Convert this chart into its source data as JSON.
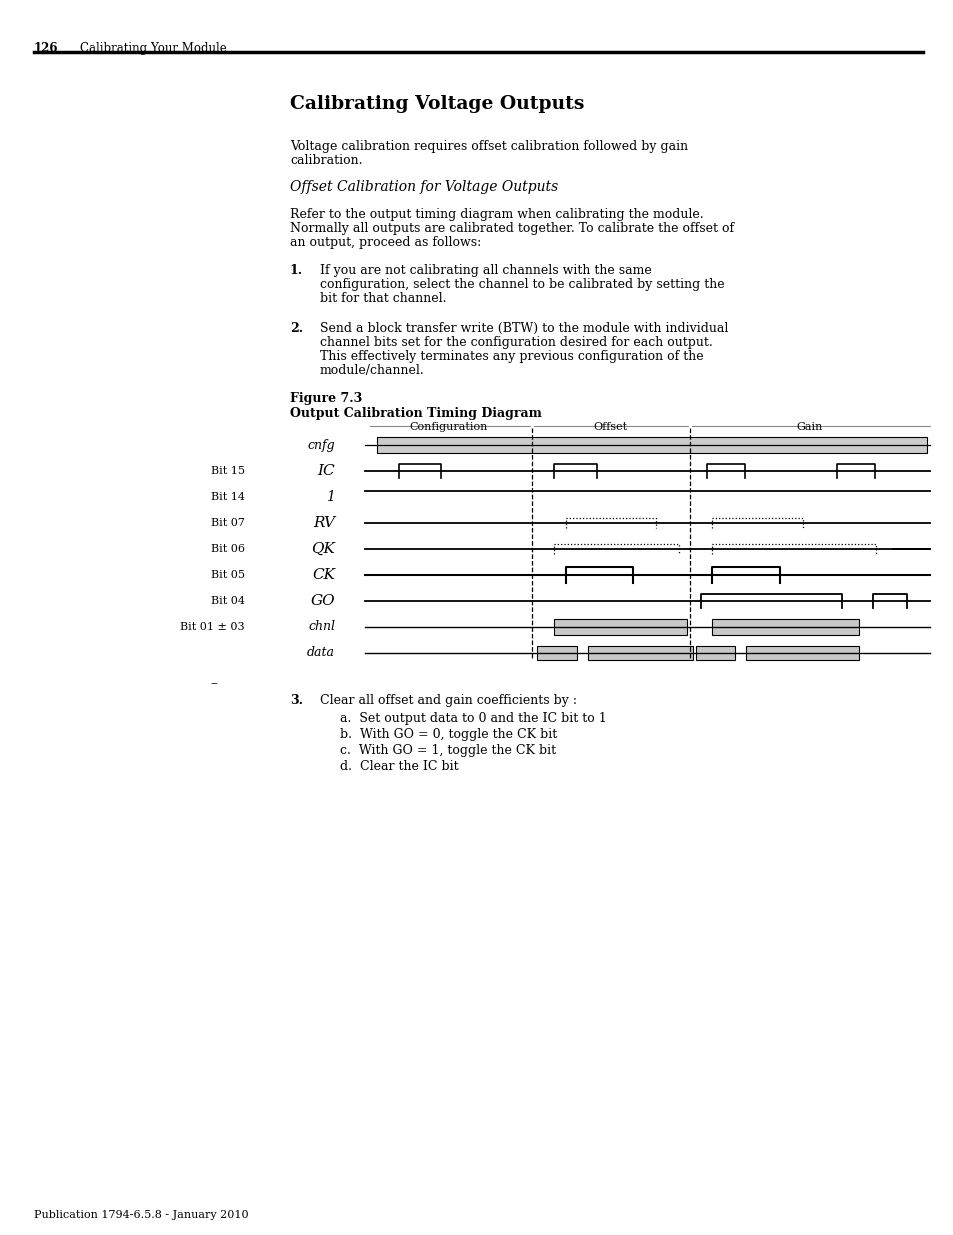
{
  "page_number": "126",
  "header_text": "Calibrating Your Module",
  "title": "Calibrating Voltage Outputs",
  "subtitle": "Offset Calibration for Voltage Outputs",
  "para1": "Voltage calibration requires offset calibration followed by gain\ncalibration.",
  "para2": "Refer to the output timing diagram when calibrating the module.\nNormally all outputs are calibrated together. To calibrate the offset of\nan output, proceed as follows:",
  "item1_num": "1.",
  "item1_text": "If you are not calibrating all channels with the same\nconfiguration, select the channel to be calibrated by setting the\nbit for that channel.",
  "item2_num": "2.",
  "item2_text": "Send a block transfer write (BTW) to the module with individual\nchannel bits set for the configuration desired for each output.\nThis effectively terminates any previous configuration of the\nmodule/channel.",
  "fig_label": "Figure 7.3",
  "fig_title": "Output Calibration Timing Diagram",
  "item3_num": "3.",
  "item3_text": "Clear all offset and gain coefficients by :",
  "item3a": "a. Set output data to 0 and the IC bit to 1",
  "item3b": "b. With GO = 0, toggle the CK bit",
  "item3c": "c. With GO = 1, toggle the CK bit",
  "item3d": "d. Clear the IC bit",
  "footer": "Publication 1794-6.5.8 - January 2010",
  "bg_color": "#ffffff",
  "gray_signal": "#cccccc",
  "gray_dark": "#999999"
}
